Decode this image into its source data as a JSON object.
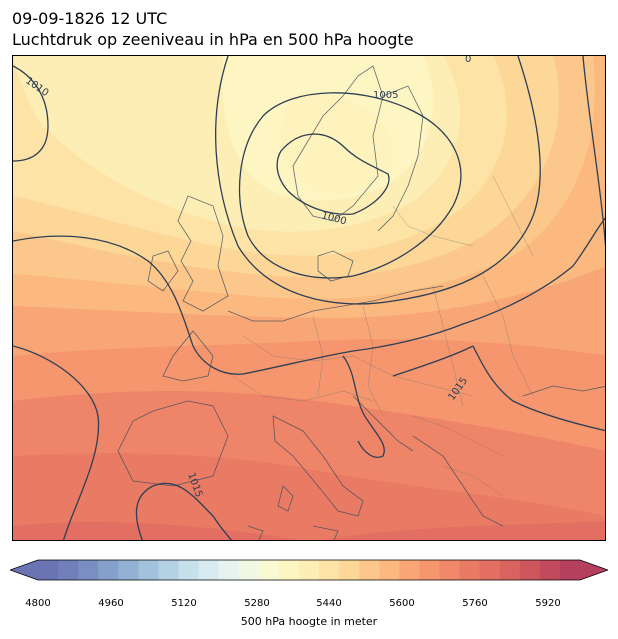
{
  "title": {
    "line1": "09-09-1826 12 UTC",
    "line2": "Luchtdruk op zeeniveau in hPa en 500 hPa hoogte"
  },
  "isobar_labels": [
    "1010",
    "1005",
    "1000",
    "1015",
    "1015",
    "0"
  ],
  "colorbar": {
    "label": "500 hPa hoogte in meter",
    "ticks": [
      "4800",
      "4960",
      "5120",
      "5280",
      "5440",
      "5600",
      "5760",
      "5920"
    ],
    "tick_values": [
      4800,
      4960,
      5120,
      5280,
      5440,
      5600,
      5760,
      5920
    ],
    "min": 4800,
    "max": 6000,
    "step": 40,
    "colors": [
      "#6a73b3",
      "#707fba",
      "#7a8ec2",
      "#85a0ca",
      "#92b1d3",
      "#a2c1dc",
      "#b3d2e4",
      "#c6e0ec",
      "#d7ebf1",
      "#e6f3f1",
      "#f1f8e4",
      "#f9f9d3",
      "#fdf5c2",
      "#fdeeb6",
      "#fde4a6",
      "#fdd797",
      "#fcc78a",
      "#fbb87f",
      "#f9a676",
      "#f5966e",
      "#f08869",
      "#e97b64",
      "#e26f61",
      "#d9635e",
      "#ce565d",
      "#c14a5d",
      "#b4405e"
    ]
  }
}
